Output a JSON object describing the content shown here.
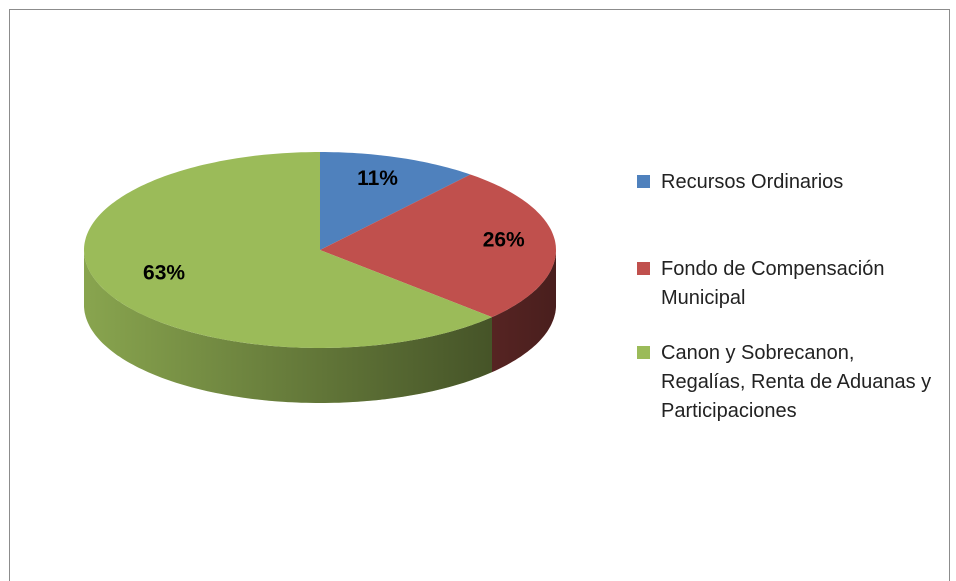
{
  "chart_data": {
    "type": "pie",
    "categories": [
      "Recursos Ordinarios",
      "Fondo de Compensación Municipal",
      "Canon y Sobrecanon, Regalías, Renta de Aduanas y Participaciones"
    ],
    "values": [
      11,
      26,
      63
    ],
    "value_labels": [
      "11%",
      "26%",
      "63%"
    ],
    "colors": [
      "#4f81bd",
      "#c0504d",
      "#9bbb59"
    ],
    "legend": "right"
  }
}
